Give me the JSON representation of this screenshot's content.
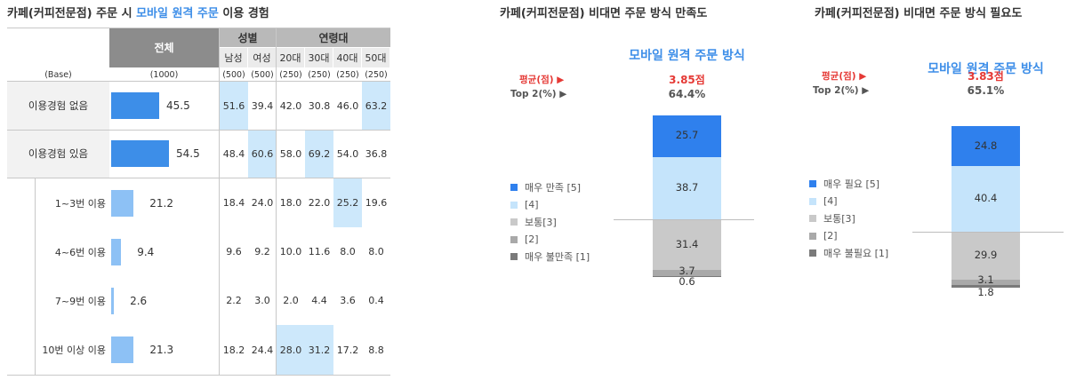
{
  "left": {
    "title_pre": "카페(커피전문점) 주문 시 ",
    "title_hl": "모바일 원격 주문",
    "title_post": " 이용 경험",
    "header": {
      "total": "전체",
      "group_gender": "성별",
      "group_age": "연령대",
      "sub": [
        "남성",
        "여성",
        "20대",
        "30대",
        "40대",
        "50대"
      ]
    },
    "base": {
      "label": "(Base)",
      "total": "(1000)",
      "values": [
        "(500)",
        "(500)",
        "(250)",
        "(250)",
        "(250)",
        "(250)"
      ]
    },
    "rows": [
      {
        "label": "이용경험 없음",
        "total": "45.5",
        "values": [
          "51.6",
          "39.4",
          "42.0",
          "30.8",
          "46.0",
          "63.2"
        ],
        "highlight": [
          true,
          false,
          false,
          false,
          false,
          true
        ]
      },
      {
        "label": "이용경험 있음",
        "total": "54.5",
        "values": [
          "48.4",
          "60.6",
          "58.0",
          "69.2",
          "54.0",
          "36.8"
        ],
        "highlight": [
          false,
          true,
          false,
          true,
          false,
          false
        ]
      },
      {
        "label": "1~3번 이용",
        "total": "21.2",
        "values": [
          "18.4",
          "24.0",
          "18.0",
          "22.0",
          "25.2",
          "19.6"
        ],
        "highlight": [
          false,
          false,
          false,
          false,
          true,
          false
        ]
      },
      {
        "label": "4~6번 이용",
        "total": "9.4",
        "values": [
          "9.6",
          "9.2",
          "10.0",
          "11.6",
          "8.0",
          "8.0"
        ],
        "highlight": [
          false,
          false,
          false,
          false,
          false,
          false
        ]
      },
      {
        "label": "7~9번 이용",
        "total": "2.6",
        "values": [
          "2.2",
          "3.0",
          "2.0",
          "4.4",
          "3.6",
          "0.4"
        ],
        "highlight": [
          false,
          false,
          false,
          false,
          false,
          false
        ]
      },
      {
        "label": "10번 이상 이용",
        "total": "21.3",
        "values": [
          "18.2",
          "24.4",
          "28.0",
          "31.2",
          "17.2",
          "8.8"
        ],
        "highlight": [
          false,
          false,
          true,
          true,
          false,
          false
        ]
      }
    ]
  },
  "chart_data": [
    {
      "type": "bar",
      "title": "카페(커피전문점) 비대면 주문 방식 만족도",
      "series_name": "모바일 원격 주문 방식",
      "avg_label": "평균(점) ▶",
      "top2_label": "Top 2(%) ▶",
      "avg_value": "3.85점",
      "top2_value": "64.4%",
      "categories": [
        "매우 만족 [5]",
        "[4]",
        "보통[3]",
        "[2]",
        "매우 불만족 [1]"
      ],
      "values": [
        25.7,
        38.7,
        31.4,
        3.7,
        0.6
      ],
      "colors": [
        "#2f80ed",
        "#c5e4fb",
        "#c9c9c9",
        "#a9a9a9",
        "#7a7a7a"
      ]
    },
    {
      "type": "bar",
      "title": "카페(커피전문점) 비대면 주문 방식 필요도",
      "series_name": "모바일 원격 주문 방식",
      "avg_label": "평균(점) ▶",
      "top2_label": "Top 2(%) ▶",
      "avg_value": "3.83점",
      "top2_value": "65.1%",
      "categories": [
        "매우 필요 [5]",
        "[4]",
        "보통[3]",
        "[2]",
        "매우 불필요 [1]"
      ],
      "values": [
        24.8,
        40.4,
        29.9,
        3.1,
        1.8
      ],
      "colors": [
        "#2f80ed",
        "#c5e4fb",
        "#c9c9c9",
        "#a9a9a9",
        "#7a7a7a"
      ]
    }
  ],
  "colors": {
    "bar_main": "#3d8ee8",
    "bar_sub": "#8dc1f5",
    "cell_highlight": "#cde8fb"
  }
}
